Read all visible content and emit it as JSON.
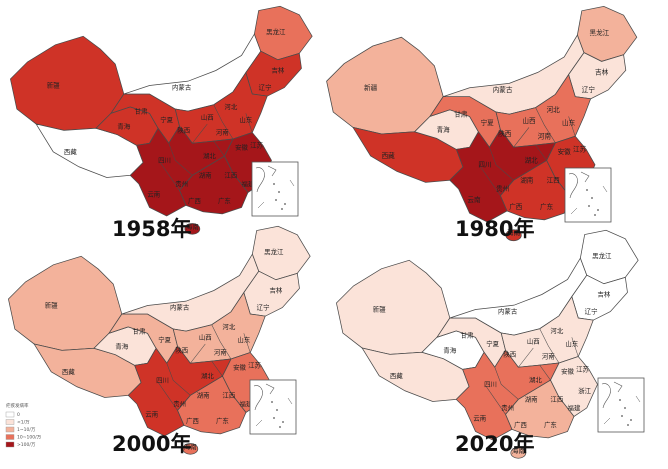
{
  "years": [
    "1958年",
    "1980年",
    "2000年",
    "2020年"
  ],
  "colors": {
    "c0": "#ffffff",
    "c1": "#fbe3d9",
    "c2": "#f3b29b",
    "c3": "#e8715b",
    "c4": "#cf3327",
    "c5": "#a5161a",
    "border": "#4a4a4a",
    "sea_box": "#555555"
  },
  "legend": {
    "title": "疟疾发病率",
    "items": [
      "0",
      "<1/万",
      "1~10/万",
      "10~100/万",
      ">100/万"
    ]
  },
  "maps": [
    {
      "regions": {
        "xinjiang": "c4",
        "xizang": "c0",
        "qinghai": "c4",
        "neimenggu": "c0",
        "heilongjiang": "c3",
        "jilin": "c4",
        "gansu": "c4",
        "north": "c4",
        "east": "c5",
        "south": "c5",
        "southwest": "c5"
      },
      "labels": [
        "新疆",
        "西藏",
        "青海",
        "内蒙古",
        "黑龙江",
        "吉林",
        "辽宁",
        "甘肃",
        "宁夏",
        "陕西",
        "山西",
        "河北",
        "山东",
        "河南",
        "江苏",
        "安徽",
        "四川",
        "湖北",
        "浙江",
        "湖南",
        "江西",
        "福建",
        "云南",
        "贵州",
        "广西",
        "广东",
        "海南"
      ]
    },
    {
      "regions": {
        "xinjiang": "c2",
        "xizang": "c4",
        "qinghai": "c1",
        "neimenggu": "c1",
        "heilongjiang": "c2",
        "jilin": "c1",
        "gansu": "c3",
        "north": "c3",
        "east": "c4",
        "south": "c4",
        "southwest": "c5"
      },
      "labels": [
        "新疆",
        "西藏",
        "青海",
        "内蒙古",
        "黑龙江",
        "吉林",
        "辽宁",
        "甘肃",
        "宁夏",
        "陕西",
        "山西",
        "河北",
        "山东",
        "河南",
        "江苏",
        "安徽",
        "四川",
        "湖北",
        "浙江",
        "湖南",
        "江西",
        "福建",
        "云南",
        "贵州",
        "广西",
        "广东",
        "海南"
      ]
    },
    {
      "regions": {
        "xinjiang": "c2",
        "xizang": "c2",
        "qinghai": "c1",
        "neimenggu": "c1",
        "heilongjiang": "c1",
        "jilin": "c1",
        "gansu": "c2",
        "north": "c2",
        "east": "c3",
        "south": "c3",
        "southwest": "c4"
      },
      "labels": [
        "新疆",
        "西藏",
        "青海",
        "内蒙古",
        "黑龙江",
        "吉林",
        "辽宁",
        "甘肃",
        "宁夏",
        "陕西",
        "山西",
        "河北",
        "山东",
        "河南",
        "江苏",
        "安徽",
        "四川",
        "湖北",
        "浙江",
        "湖南",
        "江西",
        "福建",
        "云南",
        "贵州",
        "广西",
        "广东",
        "海南"
      ]
    },
    {
      "regions": {
        "xinjiang": "c1",
        "xizang": "c1",
        "qinghai": "c0",
        "neimenggu": "c0",
        "heilongjiang": "c0",
        "jilin": "c0",
        "gansu": "c1",
        "north": "c1",
        "east": "c1",
        "south": "c2",
        "southwest": "c3"
      },
      "labels": [
        "新疆",
        "西藏",
        "青海",
        "内蒙古",
        "黑龙江",
        "吉林",
        "辽宁",
        "甘肃",
        "宁夏",
        "陕西",
        "山西",
        "河北",
        "山东",
        "河南",
        "江苏",
        "安徽",
        "四川",
        "湖北",
        "浙江",
        "湖南",
        "江西",
        "福建",
        "云南",
        "贵州",
        "广西",
        "广东",
        "海南"
      ]
    }
  ]
}
